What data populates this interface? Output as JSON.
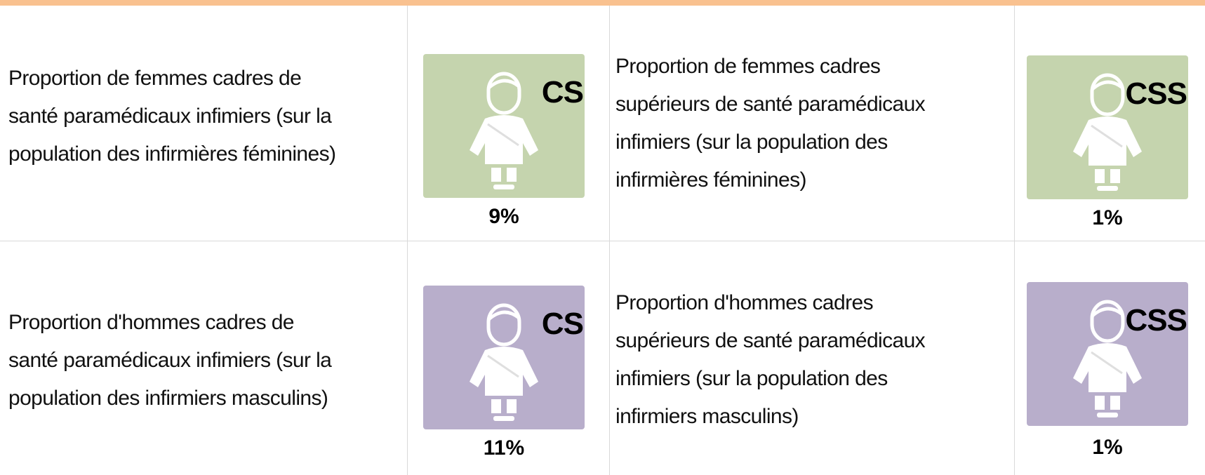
{
  "rows": [
    {
      "cells": [
        {
          "label": [
            "Proportion de femmes cadres de",
            "santé paramédicaux infimiers (sur la",
            "population des infirmières féminines)"
          ],
          "badge": "CS",
          "value": "9%"
        },
        {
          "label": [
            "Proportion de femmes cadres",
            "supérieurs de santé paramédicaux",
            "infimiers (sur la population des",
            "infirmières féminines)"
          ],
          "badge": "CSS",
          "value": "1%"
        }
      ]
    },
    {
      "cells": [
        {
          "label": [
            "Proportion d'hommes cadres de",
            "santé paramédicaux infimiers (sur la",
            "population des infirmiers masculins)"
          ],
          "badge": "CS",
          "value": "11%"
        },
        {
          "label": [
            "Proportion d'hommes cadres",
            "supérieurs de santé paramédicaux",
            "infimiers (sur la population des",
            "infirmiers masculins)"
          ],
          "badge": "CSS",
          "value": "1%"
        }
      ]
    }
  ]
}
